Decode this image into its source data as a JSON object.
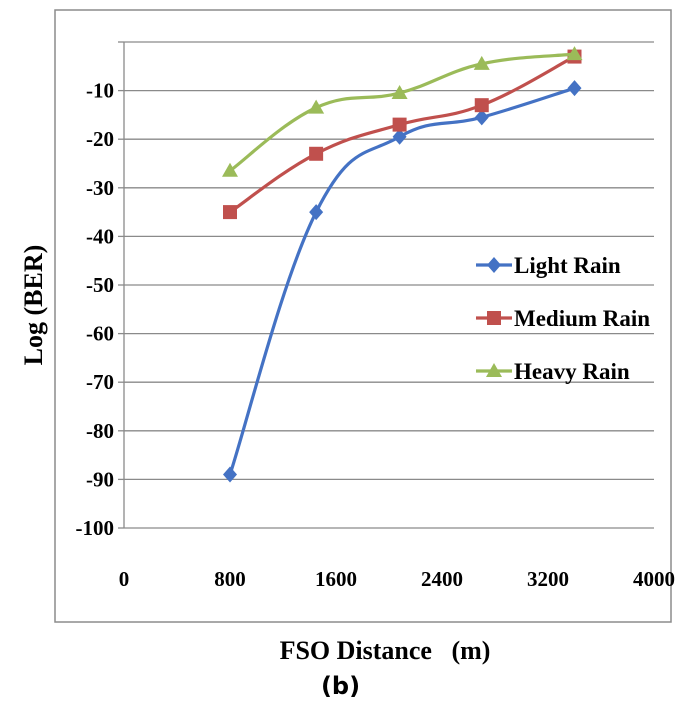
{
  "caption": "(b)",
  "chart_data": {
    "type": "line",
    "xlabel": "FSO Distance   (m)",
    "ylabel": "Log (BER)",
    "xlim": [
      0,
      4000
    ],
    "ylim": [
      -100,
      0
    ],
    "xticks": [
      "0",
      "800",
      "1600",
      "2400",
      "3200",
      "4000"
    ],
    "xtick_values": [
      0,
      800,
      1600,
      2400,
      3200,
      4000
    ],
    "yticks": [
      "-10",
      "-20",
      "-30",
      "-40",
      "-50",
      "-60",
      "-70",
      "-80",
      "-90",
      "-100"
    ],
    "ytick_values": [
      -10,
      -20,
      -30,
      -40,
      -50,
      -60,
      -70,
      -80,
      -90,
      -100
    ],
    "grid": "horizontal",
    "legend_position": "right",
    "series": [
      {
        "name": "Light Rain",
        "color": "#4472C4",
        "marker": "diamond",
        "x": [
          800,
          1450,
          2080,
          2700,
          3400
        ],
        "y": [
          -89,
          -35,
          -19.5,
          -15.5,
          -9.5
        ]
      },
      {
        "name": "Medium Rain",
        "color": "#C0504D",
        "marker": "square",
        "x": [
          800,
          1450,
          2080,
          2700,
          3400
        ],
        "y": [
          -35,
          -23,
          -17,
          -13,
          -3
        ]
      },
      {
        "name": "Heavy Rain",
        "color": "#9BBB59",
        "marker": "triangle",
        "x": [
          800,
          1450,
          2080,
          2700,
          3400
        ],
        "y": [
          -26.5,
          -13.5,
          -10.5,
          -4.5,
          -2.5
        ]
      }
    ]
  }
}
